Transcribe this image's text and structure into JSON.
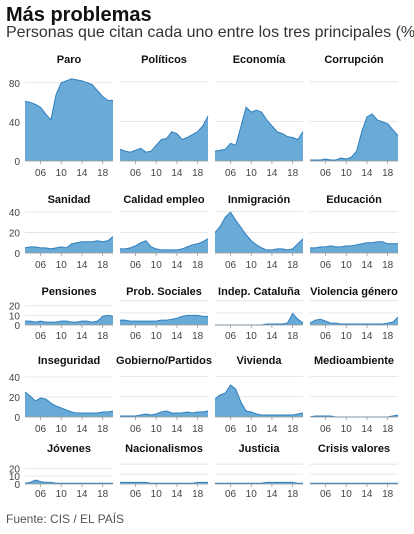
{
  "title": "Más problemas",
  "subtitle": "Personas que citan cada uno entre los tres principales (%)",
  "source": "Fuente: CIS / EL PAÍS",
  "colors": {
    "fill": "#6aaad6",
    "stroke": "#2f7fbf",
    "grid": "#e0e0e0",
    "axis": "#999999"
  },
  "chart_data": [
    {
      "type": "area",
      "title": "Paro",
      "x": [
        2003,
        2004,
        2005,
        2006,
        2007,
        2008,
        2009,
        2010,
        2011,
        2012,
        2013,
        2014,
        2015,
        2016,
        2017,
        2018,
        2019,
        2020
      ],
      "values": [
        61,
        60,
        58,
        55,
        48,
        42,
        68,
        80,
        82,
        84,
        83,
        82,
        80,
        78,
        72,
        66,
        62,
        62
      ],
      "ylim": [
        0,
        90
      ],
      "yticks": [
        0,
        40,
        80
      ],
      "xticks": [
        "06",
        "10",
        "14",
        "18"
      ]
    },
    {
      "type": "area",
      "title": "Políticos",
      "x": [
        2003,
        2004,
        2005,
        2006,
        2007,
        2008,
        2009,
        2010,
        2011,
        2012,
        2013,
        2014,
        2015,
        2016,
        2017,
        2018,
        2019,
        2020
      ],
      "values": [
        12,
        10,
        9,
        11,
        13,
        9,
        10,
        16,
        22,
        23,
        30,
        28,
        22,
        24,
        27,
        30,
        36,
        46
      ],
      "ylim": [
        0,
        90
      ],
      "xticks": [
        "06",
        "10",
        "14",
        "18"
      ]
    },
    {
      "type": "area",
      "title": "Economía",
      "x": [
        2003,
        2004,
        2005,
        2006,
        2007,
        2008,
        2009,
        2010,
        2011,
        2012,
        2013,
        2014,
        2015,
        2016,
        2017,
        2018,
        2019,
        2020
      ],
      "values": [
        10,
        11,
        12,
        18,
        16,
        35,
        55,
        50,
        52,
        50,
        42,
        36,
        30,
        28,
        25,
        24,
        22,
        30
      ],
      "ylim": [
        0,
        90
      ],
      "xticks": [
        "06",
        "10",
        "14",
        "18"
      ]
    },
    {
      "type": "area",
      "title": "Corrupción",
      "x": [
        2003,
        2004,
        2005,
        2006,
        2007,
        2008,
        2009,
        2010,
        2011,
        2012,
        2013,
        2014,
        2015,
        2016,
        2017,
        2018,
        2019,
        2020
      ],
      "values": [
        1,
        1,
        1,
        2,
        1,
        1,
        3,
        2,
        4,
        10,
        30,
        45,
        48,
        42,
        40,
        38,
        32,
        26
      ],
      "ylim": [
        0,
        90
      ],
      "xticks": [
        "06",
        "10",
        "14",
        "18"
      ]
    },
    {
      "type": "area",
      "title": "Sanidad",
      "x": [
        2003,
        2004,
        2005,
        2006,
        2007,
        2008,
        2009,
        2010,
        2011,
        2012,
        2013,
        2014,
        2015,
        2016,
        2017,
        2018,
        2019,
        2020
      ],
      "values": [
        5,
        6,
        6,
        5,
        5,
        4,
        5,
        6,
        5,
        9,
        10,
        11,
        11,
        11,
        12,
        11,
        12,
        16
      ],
      "ylim": [
        0,
        45
      ],
      "yticks": [
        0,
        20,
        40
      ],
      "xticks": [
        "06",
        "10",
        "14",
        "18"
      ]
    },
    {
      "type": "area",
      "title": "Calidad empleo",
      "x": [
        2003,
        2004,
        2005,
        2006,
        2007,
        2008,
        2009,
        2010,
        2011,
        2012,
        2013,
        2014,
        2015,
        2016,
        2017,
        2018,
        2019,
        2020
      ],
      "values": [
        4,
        4,
        5,
        7,
        10,
        12,
        6,
        4,
        3,
        3,
        3,
        3,
        4,
        6,
        8,
        9,
        11,
        14
      ],
      "ylim": [
        0,
        45
      ],
      "xticks": [
        "06",
        "10",
        "14",
        "18"
      ]
    },
    {
      "type": "area",
      "title": "Inmigración",
      "x": [
        2003,
        2004,
        2005,
        2006,
        2007,
        2008,
        2009,
        2010,
        2011,
        2012,
        2013,
        2014,
        2015,
        2016,
        2017,
        2018,
        2019,
        2020
      ],
      "values": [
        20,
        26,
        35,
        40,
        32,
        25,
        18,
        12,
        8,
        5,
        3,
        3,
        4,
        4,
        3,
        4,
        9,
        14
      ],
      "ylim": [
        0,
        45
      ],
      "xticks": [
        "06",
        "10",
        "14",
        "18"
      ]
    },
    {
      "type": "area",
      "title": "Educación",
      "x": [
        2003,
        2004,
        2005,
        2006,
        2007,
        2008,
        2009,
        2010,
        2011,
        2012,
        2013,
        2014,
        2015,
        2016,
        2017,
        2018,
        2019,
        2020
      ],
      "values": [
        5,
        5,
        6,
        6,
        7,
        6,
        6,
        7,
        7,
        8,
        9,
        10,
        10,
        11,
        11,
        9,
        9,
        9
      ],
      "ylim": [
        0,
        45
      ],
      "xticks": [
        "06",
        "10",
        "14",
        "18"
      ]
    },
    {
      "type": "area",
      "title": "Pensiones",
      "x": [
        2003,
        2004,
        2005,
        2006,
        2007,
        2008,
        2009,
        2010,
        2011,
        2012,
        2013,
        2014,
        2015,
        2016,
        2017,
        2018,
        2019,
        2020
      ],
      "values": [
        4,
        4,
        3,
        4,
        3,
        3,
        3,
        4,
        4,
        3,
        3,
        4,
        4,
        3,
        4,
        9,
        10,
        9
      ],
      "ylim": [
        0,
        28
      ],
      "yticks": [
        0,
        10,
        20
      ],
      "xticks": [
        "06",
        "10",
        "14",
        "18"
      ]
    },
    {
      "type": "area",
      "title": "Prob. Sociales",
      "x": [
        2003,
        2004,
        2005,
        2006,
        2007,
        2008,
        2009,
        2010,
        2011,
        2012,
        2013,
        2014,
        2015,
        2016,
        2017,
        2018,
        2019,
        2020
      ],
      "values": [
        5,
        5,
        4,
        4,
        4,
        4,
        4,
        4,
        5,
        5,
        6,
        7,
        9,
        10,
        10,
        10,
        9,
        9
      ],
      "ylim": [
        0,
        28
      ],
      "xticks": [
        "06",
        "10",
        "14",
        "18"
      ]
    },
    {
      "type": "area",
      "title": "Indep. Cataluña",
      "x": [
        2003,
        2004,
        2005,
        2006,
        2007,
        2008,
        2009,
        2010,
        2011,
        2012,
        2013,
        2014,
        2015,
        2016,
        2017,
        2018,
        2019,
        2020
      ],
      "values": [
        0,
        0,
        0,
        0,
        0,
        0,
        0,
        0,
        0,
        0,
        1,
        1,
        1,
        1,
        2,
        12,
        6,
        2
      ],
      "ylim": [
        0,
        28
      ],
      "xticks": [
        "06",
        "10",
        "14",
        "18"
      ]
    },
    {
      "type": "area",
      "title": "Violencia género",
      "x": [
        2003,
        2004,
        2005,
        2006,
        2007,
        2008,
        2009,
        2010,
        2011,
        2012,
        2013,
        2014,
        2015,
        2016,
        2017,
        2018,
        2019,
        2020
      ],
      "values": [
        2,
        5,
        6,
        4,
        2,
        2,
        1,
        1,
        1,
        1,
        1,
        1,
        1,
        1,
        1,
        2,
        3,
        8
      ],
      "ylim": [
        0,
        28
      ],
      "xticks": [
        "06",
        "10",
        "14",
        "18"
      ]
    },
    {
      "type": "area",
      "title": "Inseguridad",
      "x": [
        2003,
        2004,
        2005,
        2006,
        2007,
        2008,
        2009,
        2010,
        2011,
        2012,
        2013,
        2014,
        2015,
        2016,
        2017,
        2018,
        2019,
        2020
      ],
      "values": [
        25,
        21,
        16,
        19,
        18,
        14,
        11,
        9,
        7,
        5,
        4,
        4,
        4,
        4,
        4,
        5,
        5,
        6
      ],
      "ylim": [
        0,
        45
      ],
      "yticks": [
        0,
        20,
        40
      ],
      "xticks": [
        "06",
        "10",
        "14",
        "18"
      ]
    },
    {
      "type": "area",
      "title": "Gobierno/Partidos",
      "x": [
        2003,
        2004,
        2005,
        2006,
        2007,
        2008,
        2009,
        2010,
        2011,
        2012,
        2013,
        2014,
        2015,
        2016,
        2017,
        2018,
        2019,
        2020
      ],
      "values": [
        1,
        1,
        1,
        1,
        2,
        3,
        2,
        3,
        5,
        6,
        4,
        4,
        4,
        5,
        4,
        5,
        5,
        6
      ],
      "ylim": [
        0,
        45
      ],
      "xticks": [
        "06",
        "10",
        "14",
        "18"
      ]
    },
    {
      "type": "area",
      "title": "Vivienda",
      "x": [
        2003,
        2004,
        2005,
        2006,
        2007,
        2008,
        2009,
        2010,
        2011,
        2012,
        2013,
        2014,
        2015,
        2016,
        2017,
        2018,
        2019,
        2020
      ],
      "values": [
        18,
        22,
        24,
        32,
        28,
        15,
        6,
        5,
        3,
        2,
        2,
        2,
        2,
        2,
        2,
        2,
        3,
        4
      ],
      "ylim": [
        0,
        45
      ],
      "xticks": [
        "06",
        "10",
        "14",
        "18"
      ]
    },
    {
      "type": "area",
      "title": "Medioambiente",
      "x": [
        2003,
        2004,
        2005,
        2006,
        2007,
        2008,
        2009,
        2010,
        2011,
        2012,
        2013,
        2014,
        2015,
        2016,
        2017,
        2018,
        2019,
        2020
      ],
      "values": [
        0,
        1,
        1,
        1,
        1,
        0,
        0,
        0,
        0,
        0,
        0,
        0,
        0,
        0,
        0,
        0,
        1,
        2
      ],
      "ylim": [
        0,
        45
      ],
      "xticks": [
        "06",
        "10",
        "14",
        "18"
      ]
    },
    {
      "type": "area",
      "title": "Jóvenes",
      "x": [
        2003,
        2004,
        2005,
        2006,
        2007,
        2008,
        2009,
        2010,
        2011,
        2012,
        2013,
        2014,
        2015,
        2016,
        2017,
        2018,
        2019,
        2020
      ],
      "values": [
        1,
        2,
        5,
        3,
        2,
        2,
        1,
        1,
        1,
        1,
        1,
        1,
        1,
        1,
        1,
        1,
        1,
        1
      ],
      "ylim": [
        0,
        28
      ],
      "yticks": [
        0,
        10,
        20
      ],
      "xticks": [
        "06",
        "10",
        "14",
        "18"
      ]
    },
    {
      "type": "area",
      "title": "Nacionalismos",
      "x": [
        2003,
        2004,
        2005,
        2006,
        2007,
        2008,
        2009,
        2010,
        2011,
        2012,
        2013,
        2014,
        2015,
        2016,
        2017,
        2018,
        2019,
        2020
      ],
      "values": [
        2,
        2,
        2,
        2,
        2,
        2,
        1,
        1,
        1,
        1,
        1,
        1,
        1,
        1,
        1,
        2,
        2,
        2
      ],
      "ylim": [
        0,
        28
      ],
      "xticks": [
        "06",
        "10",
        "14",
        "18"
      ]
    },
    {
      "type": "area",
      "title": "Justicia",
      "x": [
        2003,
        2004,
        2005,
        2006,
        2007,
        2008,
        2009,
        2010,
        2011,
        2012,
        2013,
        2014,
        2015,
        2016,
        2017,
        2018,
        2019,
        2020
      ],
      "values": [
        1,
        1,
        1,
        1,
        1,
        1,
        1,
        1,
        1,
        1,
        2,
        2,
        2,
        2,
        2,
        2,
        1,
        1
      ],
      "ylim": [
        0,
        28
      ],
      "xticks": [
        "06",
        "10",
        "14",
        "18"
      ]
    },
    {
      "type": "area",
      "title": "Crisis valores",
      "x": [
        2003,
        2004,
        2005,
        2006,
        2007,
        2008,
        2009,
        2010,
        2011,
        2012,
        2013,
        2014,
        2015,
        2016,
        2017,
        2018,
        2019,
        2020
      ],
      "values": [
        1,
        1,
        1,
        1,
        1,
        1,
        1,
        1,
        1,
        1,
        1,
        1,
        1,
        1,
        1,
        1,
        1,
        1
      ],
      "ylim": [
        0,
        28
      ],
      "xticks": [
        "06",
        "10",
        "14",
        "18"
      ]
    }
  ]
}
